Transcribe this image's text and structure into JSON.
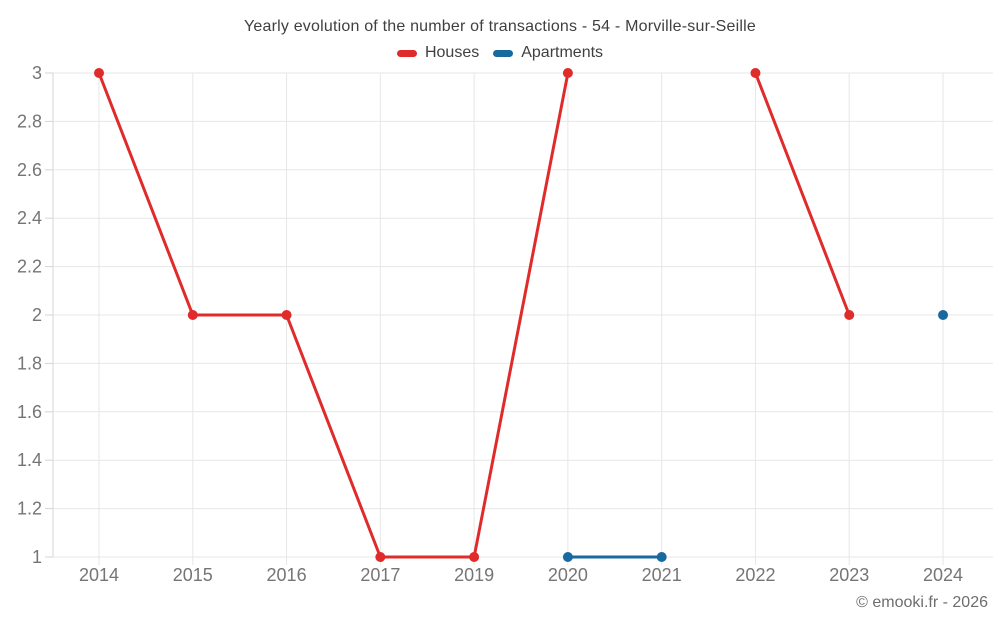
{
  "chart_data": {
    "type": "line",
    "title": "Yearly evolution of the number of transactions - 54 - Morville-sur-Seille",
    "categories": [
      "2014",
      "2015",
      "2016",
      "2017",
      "2019",
      "2020",
      "2021",
      "2022",
      "2023",
      "2024"
    ],
    "series": [
      {
        "name": "Houses",
        "color": "#e02b2b",
        "values": [
          3,
          2,
          2,
          1,
          1,
          3,
          null,
          3,
          2,
          null
        ]
      },
      {
        "name": "Apartments",
        "color": "#17699f",
        "values": [
          null,
          null,
          null,
          null,
          null,
          1,
          1,
          null,
          null,
          2
        ]
      }
    ],
    "ylim": [
      1,
      3
    ],
    "yticks": [
      1,
      1.2,
      1.4,
      1.6,
      1.8,
      2,
      2.2,
      2.4,
      2.6,
      2.8,
      3
    ],
    "grid": true,
    "legend_position": "top",
    "xlabel": "",
    "ylabel": ""
  },
  "footer": {
    "credit": "© emooki.fr - 2026"
  },
  "theme": {
    "background": "#ffffff",
    "grid_color": "#e7e7e7",
    "axis_color": "#d4d4d4",
    "tick_label_color": "#757575",
    "title_color": "#404040",
    "legend_text_color": "#404040",
    "footer_color": "#6e6e6e"
  }
}
